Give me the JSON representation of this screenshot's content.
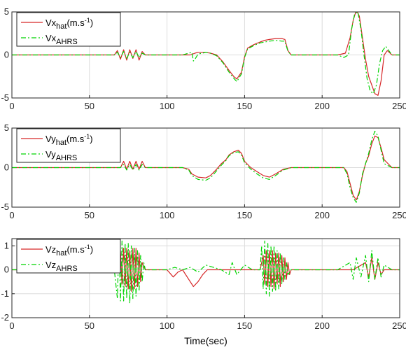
{
  "chart_data": [
    {
      "type": "line",
      "xlim": [
        0,
        250
      ],
      "ylim": [
        -5,
        5
      ],
      "xticks": [
        "0",
        "50",
        "100",
        "150",
        "200",
        "250"
      ],
      "yticks": [
        "-5",
        "0",
        "5"
      ],
      "grid": true,
      "legend_position": "top-left",
      "series": [
        {
          "name_main": "Vx",
          "name_sub": "hat",
          "name_unit": "(m.s",
          "name_exp": "-1",
          "name_close": ")",
          "color": "#d62728",
          "style": "solid",
          "x": [
            0,
            20,
            40,
            55,
            66,
            68,
            70,
            72,
            74,
            76,
            78,
            80,
            82,
            84,
            86,
            100,
            105,
            110,
            115,
            118,
            120,
            125,
            128,
            132,
            136,
            140,
            143,
            145,
            148,
            150,
            152,
            156,
            160,
            163,
            166,
            170,
            174,
            176,
            178,
            180,
            190,
            200,
            210,
            215,
            218,
            220,
            222,
            224,
            226,
            228,
            230,
            232,
            234,
            236,
            238,
            240,
            242,
            245,
            250
          ],
          "y": [
            0,
            0,
            0,
            0,
            0,
            0.5,
            -0.5,
            0.6,
            -0.6,
            0.6,
            -0.4,
            0.6,
            -0.6,
            0.4,
            0,
            0,
            0,
            0,
            0,
            0.2,
            0.3,
            0.3,
            0.2,
            0,
            -0.8,
            -1.8,
            -2.5,
            -2.8,
            -2,
            -0.2,
            0.8,
            1.2,
            1.5,
            1.7,
            1.8,
            1.9,
            1.9,
            1.8,
            0.5,
            0,
            0,
            0,
            0,
            0.2,
            2,
            4,
            5.2,
            4.5,
            2,
            -0.5,
            -2.5,
            -3.5,
            -4.5,
            -4.7,
            -3,
            0,
            0.5,
            0,
            0
          ]
        },
        {
          "name_main": "Vx",
          "name_sub": "AHRS",
          "name_unit": "",
          "name_exp": "",
          "name_close": "",
          "color": "#00d400",
          "style": "dashdot",
          "x": [
            0,
            20,
            40,
            55,
            66,
            68,
            70,
            72,
            74,
            76,
            78,
            80,
            82,
            84,
            86,
            100,
            105,
            110,
            114,
            116,
            117,
            118,
            120,
            125,
            128,
            132,
            136,
            140,
            143,
            145,
            148,
            150,
            152,
            156,
            160,
            163,
            166,
            170,
            174,
            176,
            178,
            180,
            190,
            200,
            210,
            214,
            217,
            219,
            221,
            223,
            225,
            227,
            229,
            231,
            233,
            235,
            237,
            239,
            241,
            243,
            245,
            250
          ],
          "y": [
            0,
            0,
            0,
            0,
            0,
            0.3,
            -0.3,
            0.4,
            -0.4,
            0.3,
            -0.3,
            0.4,
            -0.3,
            0.2,
            0,
            0,
            0,
            0,
            0.2,
            0.3,
            -0.7,
            -0.5,
            0.1,
            0.3,
            0.2,
            -0.1,
            -0.9,
            -2,
            -2.7,
            -3.1,
            -2.2,
            -0.3,
            0.7,
            1.1,
            1.4,
            1.5,
            1.6,
            1.7,
            1.6,
            1.6,
            0.4,
            0,
            0,
            0,
            0,
            -0.3,
            0,
            3,
            4.8,
            5,
            3,
            0,
            -2.8,
            -4.2,
            -4.5,
            -3.5,
            -1,
            0.5,
            1,
            0.5,
            0,
            0
          ]
        }
      ]
    },
    {
      "type": "line",
      "xlim": [
        0,
        250
      ],
      "ylim": [
        -5,
        5
      ],
      "xticks": [
        "0",
        "50",
        "100",
        "150",
        "200",
        "250"
      ],
      "yticks": [
        "-5",
        "0",
        "5"
      ],
      "grid": true,
      "legend_position": "top-left",
      "series": [
        {
          "name_main": "Vy",
          "name_sub": "hat",
          "name_unit": "(m.s",
          "name_exp": "-1",
          "name_close": ")",
          "color": "#d62728",
          "style": "solid",
          "x": [
            0,
            20,
            40,
            60,
            70,
            72,
            74,
            76,
            78,
            80,
            82,
            84,
            86,
            100,
            110,
            114,
            116,
            120,
            125,
            128,
            132,
            135,
            138,
            140,
            143,
            146,
            148,
            150,
            154,
            158,
            162,
            166,
            170,
            175,
            180,
            190,
            200,
            210,
            214,
            216,
            218,
            220,
            222,
            224,
            226,
            228,
            230,
            232,
            234,
            236,
            238,
            240,
            245,
            250
          ],
          "y": [
            0,
            0,
            0,
            0,
            0,
            0.8,
            -0.2,
            0.8,
            -0.2,
            0.8,
            -0.2,
            0.8,
            0,
            0,
            0,
            -0.2,
            -0.8,
            -1.2,
            -1.3,
            -1,
            -0.2,
            0.5,
            1,
            1.6,
            2,
            2.2,
            1.8,
            0.8,
            0,
            -0.5,
            -1,
            -1.2,
            -0.8,
            -0.2,
            0,
            0,
            0,
            0,
            0,
            -0.5,
            -2,
            -3.5,
            -4.1,
            -3,
            -1,
            0.5,
            1.5,
            3,
            4,
            3.8,
            2.5,
            1,
            0,
            0
          ]
        },
        {
          "name_main": "Vy",
          "name_sub": "AHRS",
          "name_unit": "",
          "name_exp": "",
          "name_close": "",
          "color": "#00d400",
          "style": "dashdot",
          "x": [
            0,
            20,
            40,
            60,
            70,
            72,
            74,
            76,
            78,
            80,
            82,
            84,
            86,
            100,
            110,
            114,
            116,
            120,
            125,
            128,
            132,
            135,
            138,
            140,
            143,
            146,
            148,
            150,
            154,
            158,
            162,
            166,
            170,
            175,
            180,
            190,
            200,
            210,
            214,
            216,
            218,
            220,
            222,
            224,
            226,
            228,
            230,
            232,
            234,
            236,
            238,
            240,
            245,
            250
          ],
          "y": [
            0,
            0,
            0,
            0,
            0,
            0.4,
            -0.3,
            0.4,
            -0.3,
            0.4,
            -0.3,
            0.4,
            0,
            0,
            0,
            -0.3,
            -1,
            -1.5,
            -1.6,
            -1.3,
            -0.4,
            0.3,
            0.9,
            1.5,
            1.9,
            2,
            1.6,
            0.6,
            -0.2,
            -0.8,
            -1.3,
            -1.5,
            -1,
            -0.3,
            0,
            0,
            0,
            0,
            0,
            -0.8,
            -2.5,
            -3.8,
            -4.4,
            -3.2,
            -0.8,
            0.5,
            1.8,
            3.5,
            4.6,
            4,
            2.2,
            0.5,
            0,
            0
          ]
        }
      ]
    },
    {
      "type": "line",
      "xlim": [
        0,
        250
      ],
      "ylim": [
        -2,
        1.3
      ],
      "xticks": [
        "0",
        "50",
        "100",
        "150",
        "200",
        "250"
      ],
      "yticks": [
        "-2",
        "-1",
        "0",
        "1"
      ],
      "grid": true,
      "legend_position": "top-left",
      "xlabel": "Time(sec)",
      "series": [
        {
          "name_main": "Vz",
          "name_sub": "hat",
          "name_unit": "(m.s",
          "name_exp": "-1",
          "name_close": ")",
          "color": "#d62728",
          "style": "solid",
          "x": [
            0,
            20,
            40,
            60,
            68,
            70,
            71,
            72,
            73,
            74,
            75,
            76,
            77,
            78,
            79,
            80,
            81,
            82,
            83,
            84,
            86,
            95,
            100,
            104,
            107,
            110,
            114,
            117,
            120,
            123,
            126,
            130,
            140,
            150,
            160,
            162,
            163,
            164,
            165,
            166,
            167,
            168,
            169,
            170,
            171,
            172,
            173,
            174,
            175,
            176,
            177,
            178,
            179,
            180,
            190,
            200,
            220,
            228,
            230,
            232,
            234,
            236,
            238,
            240,
            250
          ],
          "y": [
            0,
            0,
            0,
            0,
            0,
            0.8,
            -0.6,
            0.9,
            -0.7,
            0.9,
            -0.8,
            0.8,
            -0.9,
            0.9,
            -0.8,
            0.9,
            -0.7,
            0.7,
            -0.5,
            0.3,
            0,
            0,
            0,
            -0.3,
            -0.1,
            0,
            -0.4,
            -0.7,
            -0.5,
            -0.2,
            0,
            0,
            0,
            0,
            0,
            0.6,
            -0.6,
            0.8,
            -0.7,
            0.8,
            -0.7,
            0.8,
            -0.8,
            0.7,
            -0.6,
            0.7,
            -0.7,
            0.6,
            -0.5,
            0.5,
            -0.4,
            0.3,
            -0.2,
            0,
            0,
            0,
            0,
            0.3,
            -0.3,
            0.5,
            -0.4,
            0.3,
            -0.2,
            0,
            0
          ]
        },
        {
          "name_main": "Vz",
          "name_sub": "AHRS",
          "name_unit": "",
          "name_exp": "",
          "name_close": "",
          "color": "#00d400",
          "style": "dashdot",
          "x": [
            0,
            20,
            40,
            60,
            66,
            68,
            69,
            70,
            71,
            72,
            73,
            74,
            75,
            76,
            77,
            78,
            79,
            80,
            81,
            82,
            83,
            84,
            85,
            86,
            95,
            100,
            105,
            110,
            115,
            120,
            125,
            130,
            135,
            140,
            142,
            145,
            150,
            155,
            160,
            161,
            162,
            163,
            164,
            165,
            166,
            167,
            168,
            169,
            170,
            171,
            172,
            173,
            174,
            175,
            176,
            177,
            178,
            180,
            190,
            200,
            210,
            218,
            220,
            222,
            225,
            228,
            230,
            232,
            234,
            236,
            238,
            240,
            245,
            250
          ],
          "y": [
            0,
            0,
            0,
            0,
            0,
            -1.2,
            1.2,
            -1.3,
            1.2,
            -1.3,
            1.1,
            -1.2,
            1.1,
            -1.4,
            1,
            -1.2,
            0.9,
            -1.1,
            0.8,
            -0.9,
            0.6,
            -0.5,
            0.3,
            0,
            0,
            0,
            0.1,
            0,
            0.1,
            -0.1,
            0.2,
            0.1,
            0,
            -0.2,
            0.3,
            -0.2,
            0.2,
            0,
            0,
            1,
            -0.8,
            1.2,
            -1,
            1.1,
            -1.1,
            1,
            -0.9,
            1,
            -0.9,
            0.8,
            -0.8,
            0.7,
            -0.6,
            0.5,
            -0.4,
            0.3,
            -0.2,
            0,
            0,
            0,
            0,
            0.3,
            -0.4,
            0.5,
            -0.3,
            0.6,
            -0.5,
            0.8,
            -0.4,
            0.5,
            -0.3,
            0.2,
            0,
            0
          ]
        }
      ]
    }
  ]
}
